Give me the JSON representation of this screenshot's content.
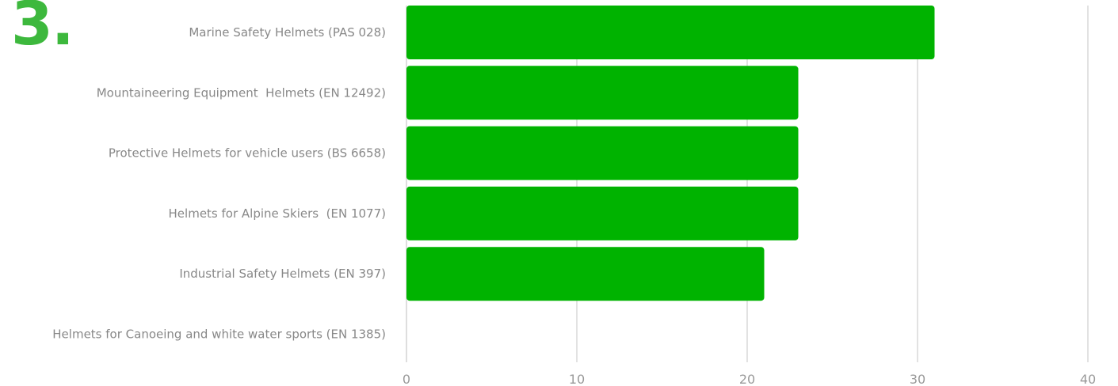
{
  "rank": "3.",
  "chart_data": {
    "type": "bar",
    "orientation": "horizontal",
    "categories": [
      "Marine Safety Helmets (PAS 028)",
      "Mountaineering Equipment  Helmets (EN 12492)",
      "Protective Helmets for vehicle users (BS 6658)",
      "Helmets for Alpine Skiers  (EN 1077)",
      "Industrial Safety Helmets (EN 397)",
      "Helmets for Canoeing and white water sports (EN 1385)"
    ],
    "values": [
      31,
      23,
      23,
      23,
      21,
      0
    ],
    "xlim": [
      0,
      40
    ],
    "xticks": [
      "0",
      "10",
      "20",
      "30",
      "40"
    ],
    "bar_color": "#00b300",
    "rank_color": "#3db83d",
    "grid": true,
    "title": "",
    "xlabel": "",
    "ylabel": ""
  }
}
